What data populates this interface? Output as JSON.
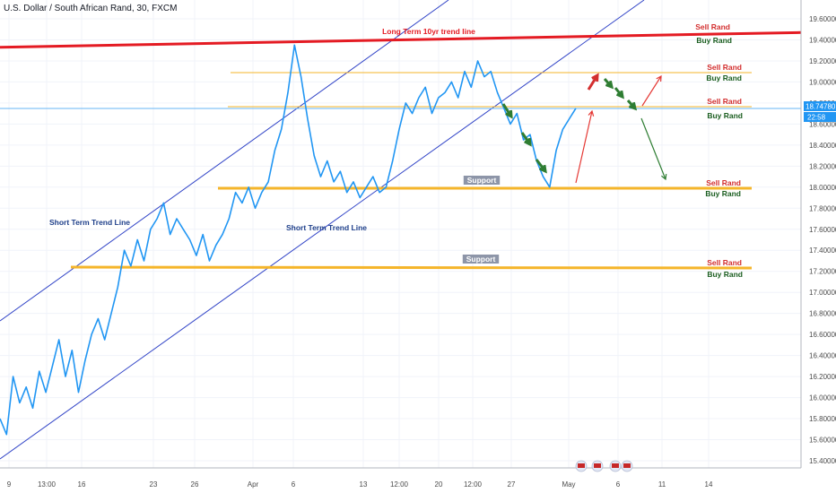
{
  "chart_data": {
    "type": "line",
    "title": "U.S. Dollar / South African Rand, 30, FXCM",
    "ylim": [
      15.3,
      19.75
    ],
    "y_ticks": [
      "19.60000",
      "19.40000",
      "19.20000",
      "19.00000",
      "18.80000",
      "18.60000",
      "18.40000",
      "18.20000",
      "18.00000",
      "17.80000",
      "17.60000",
      "17.40000",
      "17.20000",
      "17.00000",
      "16.80000",
      "16.60000",
      "16.40000",
      "16.20000",
      "16.00000",
      "15.80000",
      "15.60000",
      "15.40000"
    ],
    "x_ticks": [
      "9",
      "13:00",
      "16",
      "23",
      "26",
      "Apr",
      "6",
      "13",
      "12:00",
      "20",
      "12:00",
      "27",
      "May",
      "6",
      "11",
      "14"
    ],
    "last_price": "18.74780",
    "countdown": "22:58",
    "grid": true,
    "colors": {
      "series": "#2196f3",
      "long_trend": "#e41b23",
      "channel": "#3144c7",
      "support": "#f5b52a",
      "sell": "#d32f2f",
      "buy": "#1b5e20",
      "price_tag": "#2196f3"
    },
    "series": [
      {
        "values": [
          15.8,
          15.65,
          16.2,
          15.95,
          16.1,
          15.9,
          16.25,
          16.05,
          16.3,
          16.55,
          16.2,
          16.45,
          16.05,
          16.35,
          16.6,
          16.75,
          16.55,
          16.8,
          17.05,
          17.4,
          17.25,
          17.5,
          17.3,
          17.6,
          17.7,
          17.85,
          17.55,
          17.7,
          17.6,
          17.5,
          17.35,
          17.55,
          17.3,
          17.45,
          17.55,
          17.7,
          17.95,
          17.85,
          18.0,
          17.8,
          17.95,
          18.05,
          18.35,
          18.55,
          18.9,
          19.35,
          19.05,
          18.65,
          18.3,
          18.1,
          18.25,
          18.05,
          18.15,
          17.95,
          18.05,
          17.9,
          18.0,
          18.1,
          17.95,
          18.0,
          18.25,
          18.55,
          18.8,
          18.7,
          18.85,
          18.95,
          18.7,
          18.85,
          18.9,
          19.0,
          18.85,
          19.1,
          18.95,
          19.2,
          19.05,
          19.1,
          18.9,
          18.75,
          18.6,
          18.7,
          18.45,
          18.5,
          18.25,
          18.1,
          18.0,
          18.35,
          18.55,
          18.65,
          18.75
        ]
      }
    ],
    "drawn_lines": [
      {
        "label": "Long Term 10yr trend line",
        "color": "#e41b23",
        "x1": 0,
        "y1": 19.33,
        "x2": 1,
        "y2": 19.47
      },
      {
        "label": "Sell Rand",
        "color": "#d32f2f"
      },
      {
        "label": "Buy Rand",
        "color": "#1b5e20"
      }
    ],
    "annotations": [
      {
        "text": "Short Term Trend Line",
        "color": "#1e3f8a"
      },
      {
        "text": "Short Term Trend Line",
        "color": "#1e3f8a"
      },
      {
        "text": "Support",
        "color": "#ffffff",
        "bg": "#8d95a8"
      },
      {
        "text": "Support",
        "color": "#ffffff",
        "bg": "#8d95a8"
      },
      {
        "text": "Sell Rand",
        "color": "#d32f2f"
      },
      {
        "text": "Buy Rand",
        "color": "#1b5e20"
      },
      {
        "text": "Sell Rand",
        "color": "#d32f2f"
      },
      {
        "text": "Buy Rand",
        "color": "#1b5e20"
      },
      {
        "text": "Sell Rand",
        "color": "#d32f2f"
      },
      {
        "text": "Buy Rand",
        "color": "#1b5e20"
      },
      {
        "text": "Sell Rand",
        "color": "#d32f2f"
      },
      {
        "text": "Buy Rand",
        "color": "#1b5e20"
      },
      {
        "text": "Sell Rand",
        "color": "#d32f2f"
      },
      {
        "text": "Buy Rand",
        "color": "#1b5e20"
      }
    ],
    "levels": [
      {
        "name": "support-upper",
        "value": 17.99
      },
      {
        "name": "support-lower",
        "value": 17.23
      },
      {
        "name": "resistance-top",
        "value": 19.09
      },
      {
        "name": "price-line",
        "value": 18.75
      }
    ]
  }
}
